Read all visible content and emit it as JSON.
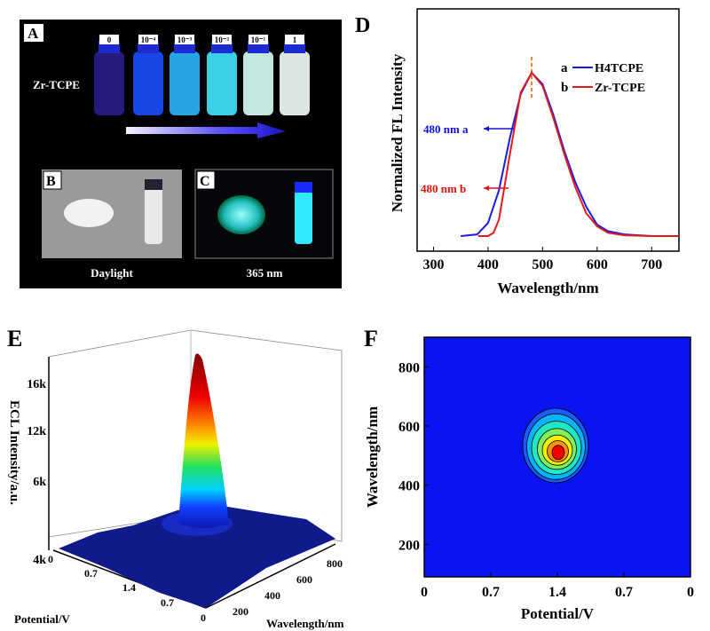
{
  "panels": {
    "A": {
      "letter": "A",
      "sample_label": "Zr-TCPE",
      "concentrations": [
        "0",
        "10⁻⁴",
        "10⁻³",
        "10⁻²",
        "10⁻¹",
        "1"
      ],
      "vial_colors": [
        "#2a1e8a",
        "#1a4cff",
        "#29b6ff",
        "#40e6ff",
        "#d8fff6",
        "#f4fff8"
      ]
    },
    "B": {
      "letter": "B",
      "caption": "Daylight"
    },
    "C": {
      "letter": "C",
      "caption": "365 nm"
    },
    "D": {
      "letter": "D"
    },
    "E": {
      "letter": "E"
    },
    "F": {
      "letter": "F"
    }
  },
  "chart_data": [
    {
      "panel": "D",
      "type": "line",
      "xlabel": "Wavelength/nm",
      "ylabel": "Normalized FL Intensity",
      "xlim": [
        270,
        750
      ],
      "xticks": [
        "300",
        "400",
        "500",
        "600",
        "700"
      ],
      "peak_marker": 480,
      "annotations": [
        {
          "text": "480 nm a",
          "color": "#1010e0"
        },
        {
          "text": "480 nm b",
          "color": "#e01010"
        }
      ],
      "legend_position": "top-right",
      "series": [
        {
          "name": "H4TCPE",
          "legend_letter": "a",
          "color": "#1a1ae0",
          "x": [
            350,
            380,
            400,
            420,
            440,
            460,
            480,
            500,
            520,
            540,
            560,
            580,
            600,
            620,
            650,
            700,
            750
          ],
          "y": [
            0,
            0.01,
            0.08,
            0.28,
            0.6,
            0.87,
            1.0,
            0.93,
            0.74,
            0.52,
            0.33,
            0.18,
            0.07,
            0.03,
            0.01,
            0,
            0
          ]
        },
        {
          "name": "Zr-TCPE",
          "legend_letter": "b",
          "color": "#e41a1a",
          "x": [
            382,
            400,
            410,
            420,
            440,
            460,
            480,
            500,
            520,
            540,
            560,
            580,
            600,
            620,
            650,
            700,
            750
          ],
          "y": [
            0,
            0,
            0.02,
            0.1,
            0.5,
            0.88,
            1.0,
            0.92,
            0.72,
            0.5,
            0.3,
            0.14,
            0.06,
            0.02,
            0.005,
            0,
            0
          ]
        }
      ]
    },
    {
      "panel": "E",
      "type": "surface",
      "zlabel": "ECL Intensity/a.u.",
      "xlabel": "Potential/V",
      "ylabel": "Wavelength/nm",
      "zticks": [
        "4k",
        "6k",
        "12k",
        "16k"
      ],
      "xticks": [
        "0",
        "0.7",
        "1.4",
        "0.7",
        "0"
      ],
      "yticks": [
        "200",
        "400",
        "600",
        "800"
      ],
      "peak": {
        "potential": 1.4,
        "wavelength": 510,
        "intensity": 18000
      },
      "colormap": "jet"
    },
    {
      "panel": "F",
      "type": "contour",
      "xlabel": "Potential/V",
      "ylabel": "Wavelength/nm",
      "xticks": [
        "0",
        "0.7",
        "1.4",
        "0.7",
        "0"
      ],
      "yticks": [
        "200",
        "400",
        "600",
        "800"
      ],
      "ylim": [
        90,
        900
      ],
      "peak": {
        "potential": 1.4,
        "wavelength": 510
      },
      "colormap": "jet"
    }
  ]
}
